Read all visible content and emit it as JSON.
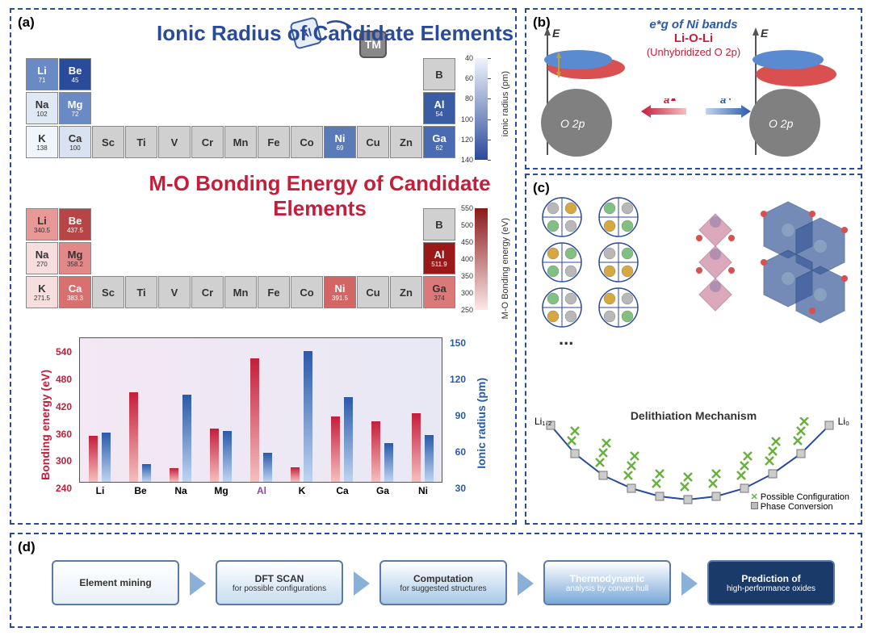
{
  "panelLabels": {
    "a": "(a)",
    "b": "(b)",
    "c": "(c)",
    "d": "(d)"
  },
  "panelA": {
    "titleIonic": "Ionic Radius of Candidate Elements",
    "titleMO": "M-O Bonding Energy of Candidate Elements",
    "altmAl": "Al",
    "altmTM": "TM",
    "colorbar1": {
      "title": "ionic radius (pm)",
      "min": 40,
      "max": 140,
      "ticks": [
        40,
        60,
        80,
        100,
        120,
        140
      ],
      "gradient": [
        "#f0f4fb",
        "#2a4a9a"
      ]
    },
    "colorbar2": {
      "title": "M-O Bonding energy (eV)",
      "min": 250,
      "max": 550,
      "ticks": [
        250,
        300,
        350,
        400,
        450,
        500,
        550
      ],
      "gradient": [
        "#8b1a1a",
        "#fce8e8"
      ]
    },
    "ionicCells": [
      {
        "sym": "Li",
        "val": "71",
        "row": 0,
        "col": 0,
        "bg": "#6a8ac5",
        "fg": "#fff"
      },
      {
        "sym": "Be",
        "val": "45",
        "row": 0,
        "col": 1,
        "bg": "#2a4a9a",
        "fg": "#fff"
      },
      {
        "sym": "B",
        "val": "",
        "row": 0,
        "col": 12,
        "bg": "#d0d0d0",
        "fg": "#333"
      },
      {
        "sym": "Na",
        "val": "102",
        "row": 1,
        "col": 0,
        "bg": "#e0e8f4",
        "fg": "#333"
      },
      {
        "sym": "Mg",
        "val": "72",
        "row": 1,
        "col": 1,
        "bg": "#6a8ac5",
        "fg": "#fff"
      },
      {
        "sym": "Al",
        "val": "54",
        "row": 1,
        "col": 12,
        "bg": "#3a5ca5",
        "fg": "#fff"
      },
      {
        "sym": "K",
        "val": "138",
        "row": 2,
        "col": 0,
        "bg": "#f0f4fb",
        "fg": "#333"
      },
      {
        "sym": "Ca",
        "val": "100",
        "row": 2,
        "col": 1,
        "bg": "#d8e2f0",
        "fg": "#333"
      },
      {
        "sym": "Sc",
        "val": "",
        "row": 2,
        "col": 2,
        "bg": "#d0d0d0",
        "fg": "#333"
      },
      {
        "sym": "Ti",
        "val": "",
        "row": 2,
        "col": 3,
        "bg": "#d0d0d0",
        "fg": "#333"
      },
      {
        "sym": "V",
        "val": "",
        "row": 2,
        "col": 4,
        "bg": "#d0d0d0",
        "fg": "#333"
      },
      {
        "sym": "Cr",
        "val": "",
        "row": 2,
        "col": 5,
        "bg": "#d0d0d0",
        "fg": "#333"
      },
      {
        "sym": "Mn",
        "val": "",
        "row": 2,
        "col": 6,
        "bg": "#d0d0d0",
        "fg": "#333"
      },
      {
        "sym": "Fe",
        "val": "",
        "row": 2,
        "col": 7,
        "bg": "#d0d0d0",
        "fg": "#333"
      },
      {
        "sym": "Co",
        "val": "",
        "row": 2,
        "col": 8,
        "bg": "#d0d0d0",
        "fg": "#333"
      },
      {
        "sym": "Ni",
        "val": "69",
        "row": 2,
        "col": 9,
        "bg": "#5a7ab8",
        "fg": "#fff"
      },
      {
        "sym": "Cu",
        "val": "",
        "row": 2,
        "col": 10,
        "bg": "#d0d0d0",
        "fg": "#333"
      },
      {
        "sym": "Zn",
        "val": "",
        "row": 2,
        "col": 11,
        "bg": "#d0d0d0",
        "fg": "#333"
      },
      {
        "sym": "Ga",
        "val": "62",
        "row": 2,
        "col": 12,
        "bg": "#4a6ab2",
        "fg": "#fff"
      }
    ],
    "moCells": [
      {
        "sym": "Li",
        "val": "340.5",
        "row": 0,
        "col": 0,
        "bg": "#e99898",
        "fg": "#333"
      },
      {
        "sym": "Be",
        "val": "437.5",
        "row": 0,
        "col": 1,
        "bg": "#b84545",
        "fg": "#fff"
      },
      {
        "sym": "B",
        "val": "",
        "row": 0,
        "col": 12,
        "bg": "#d0d0d0",
        "fg": "#333"
      },
      {
        "sym": "Na",
        "val": "270",
        "row": 1,
        "col": 0,
        "bg": "#f7dede",
        "fg": "#333"
      },
      {
        "sym": "Mg",
        "val": "358.2",
        "row": 1,
        "col": 1,
        "bg": "#e28888",
        "fg": "#333"
      },
      {
        "sym": "Al",
        "val": "511.9",
        "row": 1,
        "col": 12,
        "bg": "#9a1818",
        "fg": "#fff"
      },
      {
        "sym": "K",
        "val": "271.5",
        "row": 2,
        "col": 0,
        "bg": "#f7dede",
        "fg": "#333"
      },
      {
        "sym": "Ca",
        "val": "383.3",
        "row": 2,
        "col": 1,
        "bg": "#d87070",
        "fg": "#fff"
      },
      {
        "sym": "Sc",
        "val": "",
        "row": 2,
        "col": 2,
        "bg": "#d0d0d0",
        "fg": "#333"
      },
      {
        "sym": "Ti",
        "val": "",
        "row": 2,
        "col": 3,
        "bg": "#d0d0d0",
        "fg": "#333"
      },
      {
        "sym": "V",
        "val": "",
        "row": 2,
        "col": 4,
        "bg": "#d0d0d0",
        "fg": "#333"
      },
      {
        "sym": "Cr",
        "val": "",
        "row": 2,
        "col": 5,
        "bg": "#d0d0d0",
        "fg": "#333"
      },
      {
        "sym": "Mn",
        "val": "",
        "row": 2,
        "col": 6,
        "bg": "#d0d0d0",
        "fg": "#333"
      },
      {
        "sym": "Fe",
        "val": "",
        "row": 2,
        "col": 7,
        "bg": "#d0d0d0",
        "fg": "#333"
      },
      {
        "sym": "Co",
        "val": "",
        "row": 2,
        "col": 8,
        "bg": "#d0d0d0",
        "fg": "#333"
      },
      {
        "sym": "Ni",
        "val": "391.5",
        "row": 2,
        "col": 9,
        "bg": "#d46565",
        "fg": "#fff"
      },
      {
        "sym": "Cu",
        "val": "",
        "row": 2,
        "col": 10,
        "bg": "#d0d0d0",
        "fg": "#333"
      },
      {
        "sym": "Zn",
        "val": "",
        "row": 2,
        "col": 11,
        "bg": "#d0d0d0",
        "fg": "#333"
      },
      {
        "sym": "Ga",
        "val": "374",
        "row": 2,
        "col": 12,
        "bg": "#db7878",
        "fg": "#333"
      }
    ],
    "chart": {
      "type": "grouped-bar",
      "ylabelL": "Bonding energy (eV)",
      "ylabelR": "Ionic radius (pm)",
      "categories": [
        "Li",
        "Be",
        "Na",
        "Mg",
        "Al",
        "K",
        "Ca",
        "Ga",
        "Ni"
      ],
      "highlightIndex": 4,
      "highlightColor": "#8a4aa5",
      "bonding": [
        340.5,
        437.5,
        270,
        358.2,
        511.9,
        271.5,
        383.3,
        374,
        391.5
      ],
      "ionic": [
        71,
        45,
        102,
        72,
        54,
        138,
        100,
        62,
        69
      ],
      "ylimL": [
        240,
        560
      ],
      "ytickL": [
        240,
        300,
        360,
        420,
        480,
        540
      ],
      "ylimR": [
        30,
        150
      ],
      "ytickR": [
        30,
        60,
        90,
        120,
        150
      ],
      "barColorRed": "#c41e3a",
      "barColorBlue": "#2a5aaa",
      "plotbg": "#ece7f3"
    }
  },
  "panelB": {
    "titleTop": "e*g of Ni bands",
    "titleMid": "Li-O-Li",
    "titleSub": "(Unhybridized O 2p)",
    "axisE": "E",
    "aLabel": "a",
    "o2p": "O 2p",
    "colors": {
      "niBand": "#5a8acf",
      "liOLi": "#d85050",
      "o2p": "#808080",
      "arrowRed": "#c41e3a",
      "arrowBlue": "#2a5aaa"
    }
  },
  "panelC": {
    "delith": "Delithiation Mechanism",
    "ellipsis": "...",
    "li12": "Li₁.₂",
    "li0": "Li₀",
    "legendPossible": "Possible Configuration",
    "legendPhase": "Phase Conversion",
    "hullColor": "#2a4a9a",
    "crossColor": "#6ab040",
    "boxColor": "#999",
    "atomColors": {
      "a": "#b8b8b8",
      "b": "#d8a840",
      "c": "#80c080",
      "d": "#d85050",
      "e": "#6a8ac5"
    }
  },
  "panelD": {
    "steps": [
      {
        "title": "Element mining",
        "sub": "",
        "bg": "#e8f0f8",
        "fg": "#333"
      },
      {
        "title": "DFT SCAN",
        "sub": "for possible configurations",
        "bg": "#c8dcf0",
        "fg": "#333"
      },
      {
        "title": "Computation",
        "sub": "for suggested structures",
        "bg": "#a8c8e8",
        "fg": "#333"
      },
      {
        "title": "Thermodynamic",
        "sub": "analysis by convex hull",
        "bg": "#78a8d8",
        "fg": "#fff"
      },
      {
        "title": "Prediction of",
        "sub": "high-performance oxides",
        "bg": "#1a3a6a",
        "fg": "#fff"
      }
    ],
    "arrowColor": "#8bb0d8"
  }
}
